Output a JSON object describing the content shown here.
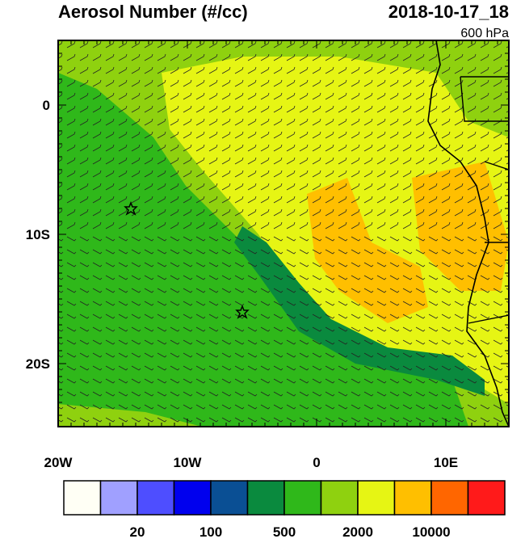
{
  "header": {
    "title": "Aerosol Number (#/cc)",
    "date": "2018-10-17_18",
    "level": "600 hPa"
  },
  "axes": {
    "lat_labels": [
      "0",
      "10S",
      "20S"
    ],
    "lon_labels": [
      "20W",
      "10W",
      "0",
      "10E"
    ]
  },
  "colorbar": {
    "colors": [
      "#fffff5",
      "#a0a0ff",
      "#4e4eff",
      "#0000ee",
      "#0a4f94",
      "#0a8a3e",
      "#2fb81a",
      "#8fd10f",
      "#e6f514",
      "#ffbf00",
      "#ff6600",
      "#ff1a1a"
    ],
    "labels": [
      20,
      100,
      500,
      2000,
      10000
    ]
  }
}
